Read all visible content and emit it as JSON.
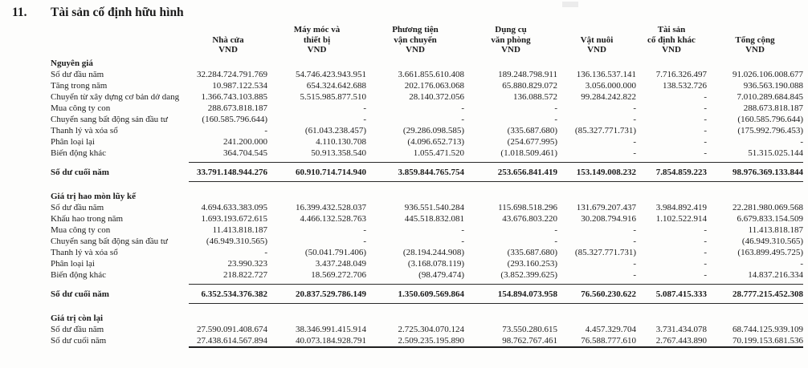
{
  "page": {
    "item_number": "11.",
    "title": "Tài sản cố định hữu hình"
  },
  "table": {
    "columns": [
      {
        "lines": [
          "Nhà cửa",
          "VND"
        ]
      },
      {
        "lines": [
          "Máy móc và",
          "thiết bị",
          "VND"
        ]
      },
      {
        "lines": [
          "Phương tiện",
          "vận chuyển",
          "VND"
        ]
      },
      {
        "lines": [
          "Dụng cụ",
          "văn phòng",
          "VND"
        ]
      },
      {
        "lines": [
          "Vật nuôi",
          "VND"
        ]
      },
      {
        "lines": [
          "Tài sản",
          "cố định khác",
          "VND"
        ]
      },
      {
        "lines": [
          "Tổng cộng",
          "VND"
        ]
      }
    ],
    "sections": [
      {
        "heading": "Nguyên giá",
        "rows": [
          {
            "label": "Số dư đầu năm",
            "values": [
              "32.284.724.791.769",
              "54.746.423.943.951",
              "3.661.855.610.408",
              "189.248.798.911",
              "136.136.537.141",
              "7.716.326.497",
              "91.026.106.008.677"
            ]
          },
          {
            "label": "Tăng trong năm",
            "values": [
              "10.987.122.534",
              "654.324.642.688",
              "202.176.063.068",
              "65.880.829.072",
              "3.056.000.000",
              "138.532.726",
              "936.563.190.088"
            ]
          },
          {
            "label": "Chuyển từ xây dựng cơ bản dở dang",
            "values": [
              "1.366.743.103.885",
              "5.515.985.877.510",
              "28.140.372.056",
              "136.088.572",
              "99.284.242.822",
              "-",
              "7.010.289.684.845"
            ]
          },
          {
            "label": "Mua công ty con",
            "values": [
              "288.673.818.187",
              "-",
              "-",
              "-",
              "-",
              "-",
              "288.673.818.187"
            ]
          },
          {
            "label": "Chuyển sang bất động sản đầu tư",
            "values": [
              "(160.585.796.644)",
              "-",
              "-",
              "-",
              "-",
              "-",
              "(160.585.796.644)"
            ]
          },
          {
            "label": "Thanh lý và xóa sổ",
            "values": [
              "-",
              "(61.043.238.457)",
              "(29.286.098.585)",
              "(335.687.680)",
              "(85.327.771.731)",
              "-",
              "(175.992.796.453)"
            ]
          },
          {
            "label": "Phân loại lại",
            "values": [
              "241.200.000",
              "4.110.130.708",
              "(4.096.652.713)",
              "(254.677.995)",
              "-",
              "-",
              "-"
            ]
          },
          {
            "label": "Biến động khác",
            "values": [
              "364.704.545",
              "50.913.358.540",
              "1.055.471.520",
              "(1.018.509.461)",
              "-",
              "-",
              "51.315.025.144"
            ]
          }
        ],
        "total": {
          "label": "Số dư cuối năm",
          "values": [
            "33.791.148.944.276",
            "60.910.714.714.940",
            "3.859.844.765.754",
            "253.656.841.419",
            "153.149.008.232",
            "7.854.859.223",
            "98.976.369.133.844"
          ]
        }
      },
      {
        "heading": "Giá trị hao mòn lũy kế",
        "rows": [
          {
            "label": "Số dư đầu năm",
            "values": [
              "4.694.633.383.095",
              "16.399.432.528.037",
              "936.551.540.284",
              "115.698.518.296",
              "131.679.207.437",
              "3.984.892.419",
              "22.281.980.069.568"
            ]
          },
          {
            "label": "Khấu hao trong năm",
            "values": [
              "1.693.193.672.615",
              "4.466.132.528.763",
              "445.518.832.081",
              "43.676.803.220",
              "30.208.794.916",
              "1.102.522.914",
              "6.679.833.154.509"
            ]
          },
          {
            "label": "Mua công ty con",
            "values": [
              "11.413.818.187",
              "-",
              "-",
              "-",
              "-",
              "-",
              "11.413.818.187"
            ]
          },
          {
            "label": "Chuyển sang bất động sản đầu tư",
            "values": [
              "(46.949.310.565)",
              "-",
              "-",
              "-",
              "-",
              "-",
              "(46.949.310.565)"
            ]
          },
          {
            "label": "Thanh lý và xóa sổ",
            "values": [
              "-",
              "(50.041.791.406)",
              "(28.194.244.908)",
              "(335.687.680)",
              "(85.327.771.731)",
              "-",
              "(163.899.495.725)"
            ]
          },
          {
            "label": "Phân loại lại",
            "values": [
              "23.990.323",
              "3.437.248.049",
              "(3.168.078.119)",
              "(293.160.253)",
              "-",
              "-",
              "-"
            ]
          },
          {
            "label": "Biến động khác",
            "values": [
              "218.822.727",
              "18.569.272.706",
              "(98.479.474)",
              "(3.852.399.625)",
              "-",
              "-",
              "14.837.216.334"
            ]
          }
        ],
        "total": {
          "label": "Số dư cuối năm",
          "values": [
            "6.352.534.376.382",
            "20.837.529.786.149",
            "1.350.609.569.864",
            "154.894.073.958",
            "76.560.230.622",
            "5.087.415.333",
            "28.777.215.452.308"
          ]
        }
      },
      {
        "heading": "Giá trị còn lại",
        "rows": [
          {
            "label": "Số dư đầu năm",
            "values": [
              "27.590.091.408.674",
              "38.346.991.415.914",
              "2.725.304.070.124",
              "73.550.280.615",
              "4.457.329.704",
              "3.731.434.078",
              "68.744.125.939.109"
            ]
          },
          {
            "label": "Số dư cuối năm",
            "values": [
              "27.438.614.567.894",
              "40.073.184.928.791",
              "2.509.235.195.890",
              "98.762.767.461",
              "76.588.777.610",
              "2.767.443.890",
              "70.199.153.681.536"
            ]
          }
        ],
        "total": null,
        "closing_rule": true
      }
    ]
  }
}
